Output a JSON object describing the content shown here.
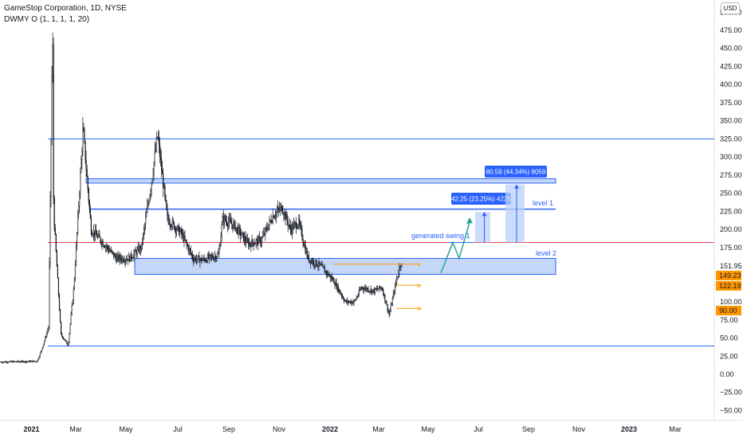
{
  "header": {
    "symbol_line": "GameStop Corporation, 1D, NYSE",
    "indicator_line": "DWMY O (1, 1, 1, 1, 20)"
  },
  "currency": "USD",
  "colors": {
    "candle": "#131722",
    "blue_line": "#2962ff",
    "zone_fill": "#bbd0f8",
    "red_line": "#f23645",
    "orange": "#ff9800",
    "teal": "#26a69a",
    "label_bg": "#2962ff"
  },
  "chart_data": {
    "type": "candlestick",
    "title": "GameStop Corporation, 1D, NYSE",
    "x_axis": {
      "ticks": [
        "2021",
        "Mar",
        "May",
        "Jul",
        "Sep",
        "Nov",
        "2022",
        "Mar",
        "May",
        "Jul",
        "Sep",
        "Nov",
        "2023",
        "Mar"
      ]
    },
    "y_axis": {
      "range": [
        -60,
        520
      ],
      "ticks": [
        "500.00",
        "475.00",
        "450.00",
        "425.00",
        "400.00",
        "375.00",
        "350.00",
        "325.00",
        "300.00",
        "275.00",
        "250.00",
        "225.00",
        "200.00",
        "175.00",
        "151.95",
        "125.00",
        "100.00",
        "75.00",
        "50.00",
        "25.00",
        "0.00",
        "−25.00",
        "−50.00"
      ]
    },
    "price_series": [
      {
        "date": "2020-12",
        "price": 17
      },
      {
        "date": "2021-01-08",
        "price": 18
      },
      {
        "date": "2021-01-13",
        "price": 32
      },
      {
        "date": "2021-01-22",
        "price": 65
      },
      {
        "date": "2021-01-27",
        "price": 483
      },
      {
        "date": "2021-02-01",
        "price": 225
      },
      {
        "date": "2021-02-10",
        "price": 55
      },
      {
        "date": "2021-02-19",
        "price": 40
      },
      {
        "date": "2021-02-26",
        "price": 120
      },
      {
        "date": "2021-03-10",
        "price": 340
      },
      {
        "date": "2021-03-20",
        "price": 200
      },
      {
        "date": "2021-04-05",
        "price": 180
      },
      {
        "date": "2021-04-20",
        "price": 160
      },
      {
        "date": "2021-05-05",
        "price": 160
      },
      {
        "date": "2021-05-20",
        "price": 175
      },
      {
        "date": "2021-06-01",
        "price": 270
      },
      {
        "date": "2021-06-08",
        "price": 330
      },
      {
        "date": "2021-06-20",
        "price": 215
      },
      {
        "date": "2021-07-05",
        "price": 195
      },
      {
        "date": "2021-07-20",
        "price": 160
      },
      {
        "date": "2021-08-01",
        "price": 158
      },
      {
        "date": "2021-08-20",
        "price": 165
      },
      {
        "date": "2021-08-25",
        "price": 215
      },
      {
        "date": "2021-09-08",
        "price": 205
      },
      {
        "date": "2021-09-25",
        "price": 180
      },
      {
        "date": "2021-10-10",
        "price": 185
      },
      {
        "date": "2021-10-25",
        "price": 220
      },
      {
        "date": "2021-11-05",
        "price": 230
      },
      {
        "date": "2021-11-15",
        "price": 200
      },
      {
        "date": "2021-11-25",
        "price": 210
      },
      {
        "date": "2021-12-05",
        "price": 160
      },
      {
        "date": "2021-12-20",
        "price": 150
      },
      {
        "date": "2022-01-05",
        "price": 130
      },
      {
        "date": "2022-01-20",
        "price": 100
      },
      {
        "date": "2022-02-01",
        "price": 100
      },
      {
        "date": "2022-02-10",
        "price": 120
      },
      {
        "date": "2022-02-25",
        "price": 115
      },
      {
        "date": "2022-03-05",
        "price": 120
      },
      {
        "date": "2022-03-14",
        "price": 82
      },
      {
        "date": "2022-03-22",
        "price": 125
      },
      {
        "date": "2022-03-28",
        "price": 155
      },
      {
        "date": "2022-03-30",
        "price": 149
      }
    ],
    "horizontal_lines": [
      {
        "price": 325,
        "color": "blue"
      },
      {
        "price": 228,
        "color": "blue",
        "label": "level 1"
      },
      {
        "price": 182,
        "color": "red"
      },
      {
        "price": 39,
        "color": "blue"
      }
    ],
    "zones": [
      {
        "top": 270,
        "bottom": 264,
        "from": "2021-03",
        "to": "2022-08"
      },
      {
        "top": 160,
        "bottom": 138,
        "from": "2021-05",
        "to": "2022-08",
        "label": "level 2"
      }
    ],
    "measure_boxes": [
      {
        "label": "42.25 (23.25%) 4225",
        "from_price": 182,
        "to_price": 224
      },
      {
        "label": "80.59 (44.34%) 8059",
        "from_price": 182,
        "to_price": 262
      }
    ],
    "annotations": [
      "generated swing 1",
      "level 1",
      "level 2"
    ],
    "dwmy_markers": [
      {
        "letter": "Y",
        "price": 152
      },
      {
        "letter": "M",
        "price": 123
      },
      {
        "letter": "W",
        "price": 91
      }
    ],
    "price_tags": [
      {
        "text": "151.95",
        "style": "axis"
      },
      {
        "text": "149.23",
        "style": "orange"
      },
      {
        "text": "122.19",
        "style": "orange"
      },
      {
        "text": "90.00",
        "style": "orange"
      }
    ]
  }
}
